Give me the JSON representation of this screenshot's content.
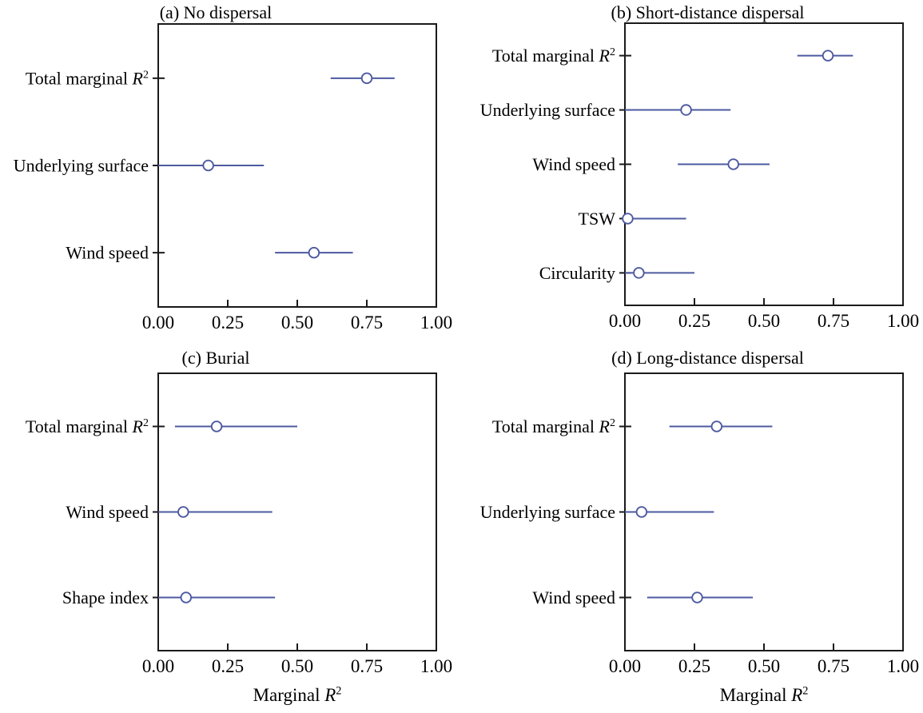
{
  "figure": {
    "xlabel": "Marginal R²",
    "background_color": "#ffffff",
    "accent_color": "#4d5aa0",
    "axis_color": "#1a1a1a",
    "text_color": "#000000",
    "marker": "open-circle"
  },
  "chart_data": [
    {
      "type": "scatter",
      "panel": "a",
      "title": "(a) No dispersal",
      "xlabel": "Marginal R²",
      "xlim": [
        0,
        1
      ],
      "x_ticks": [
        0.0,
        0.25,
        0.5,
        0.75,
        1.0
      ],
      "x_tick_labels": [
        "0.00",
        "0.25",
        "0.50",
        "0.75",
        "1.00"
      ],
      "grid": false,
      "categories": [
        "Total marginal R²",
        "Underlying surface",
        "Wind speed"
      ],
      "values": [
        0.75,
        0.18,
        0.56
      ],
      "lower": [
        0.62,
        0.0,
        0.42
      ],
      "upper": [
        0.85,
        0.38,
        0.7
      ]
    },
    {
      "type": "scatter",
      "panel": "b",
      "title": "(b) Short-distance dispersal",
      "xlabel": "Marginal R²",
      "xlim": [
        0,
        1
      ],
      "x_ticks": [
        0.0,
        0.25,
        0.5,
        0.75,
        1.0
      ],
      "x_tick_labels": [
        "0.00",
        "0.25",
        "0.50",
        "0.75",
        "1.00"
      ],
      "grid": false,
      "categories": [
        "Total marginal R²",
        "Underlying surface",
        "Wind speed",
        "TSW",
        "Circularity"
      ],
      "values": [
        0.73,
        0.22,
        0.39,
        0.01,
        0.05
      ],
      "lower": [
        0.62,
        0.0,
        0.19,
        0.0,
        0.0
      ],
      "upper": [
        0.82,
        0.38,
        0.52,
        0.22,
        0.25
      ]
    },
    {
      "type": "scatter",
      "panel": "c",
      "title": "(c) Burial",
      "xlabel": "Marginal R²",
      "xlim": [
        0,
        1
      ],
      "x_ticks": [
        0.0,
        0.25,
        0.5,
        0.75,
        1.0
      ],
      "x_tick_labels": [
        "0.00",
        "0.25",
        "0.50",
        "0.75",
        "1.00"
      ],
      "grid": false,
      "categories": [
        "Total marginal R²",
        "Wind speed",
        "Shape index"
      ],
      "values": [
        0.21,
        0.09,
        0.1
      ],
      "lower": [
        0.06,
        0.0,
        0.0
      ],
      "upper": [
        0.5,
        0.41,
        0.42
      ]
    },
    {
      "type": "scatter",
      "panel": "d",
      "title": "(d) Long-distance dispersal",
      "xlabel": "Marginal R²",
      "xlim": [
        0,
        1
      ],
      "x_ticks": [
        0.0,
        0.25,
        0.5,
        0.75,
        1.0
      ],
      "x_tick_labels": [
        "0.00",
        "0.25",
        "0.50",
        "0.75",
        "1.00"
      ],
      "grid": false,
      "categories": [
        "Total marginal R²",
        "Underlying surface",
        "Wind speed"
      ],
      "values": [
        0.33,
        0.06,
        0.26
      ],
      "lower": [
        0.16,
        0.0,
        0.08
      ],
      "upper": [
        0.53,
        0.32,
        0.46
      ]
    }
  ]
}
